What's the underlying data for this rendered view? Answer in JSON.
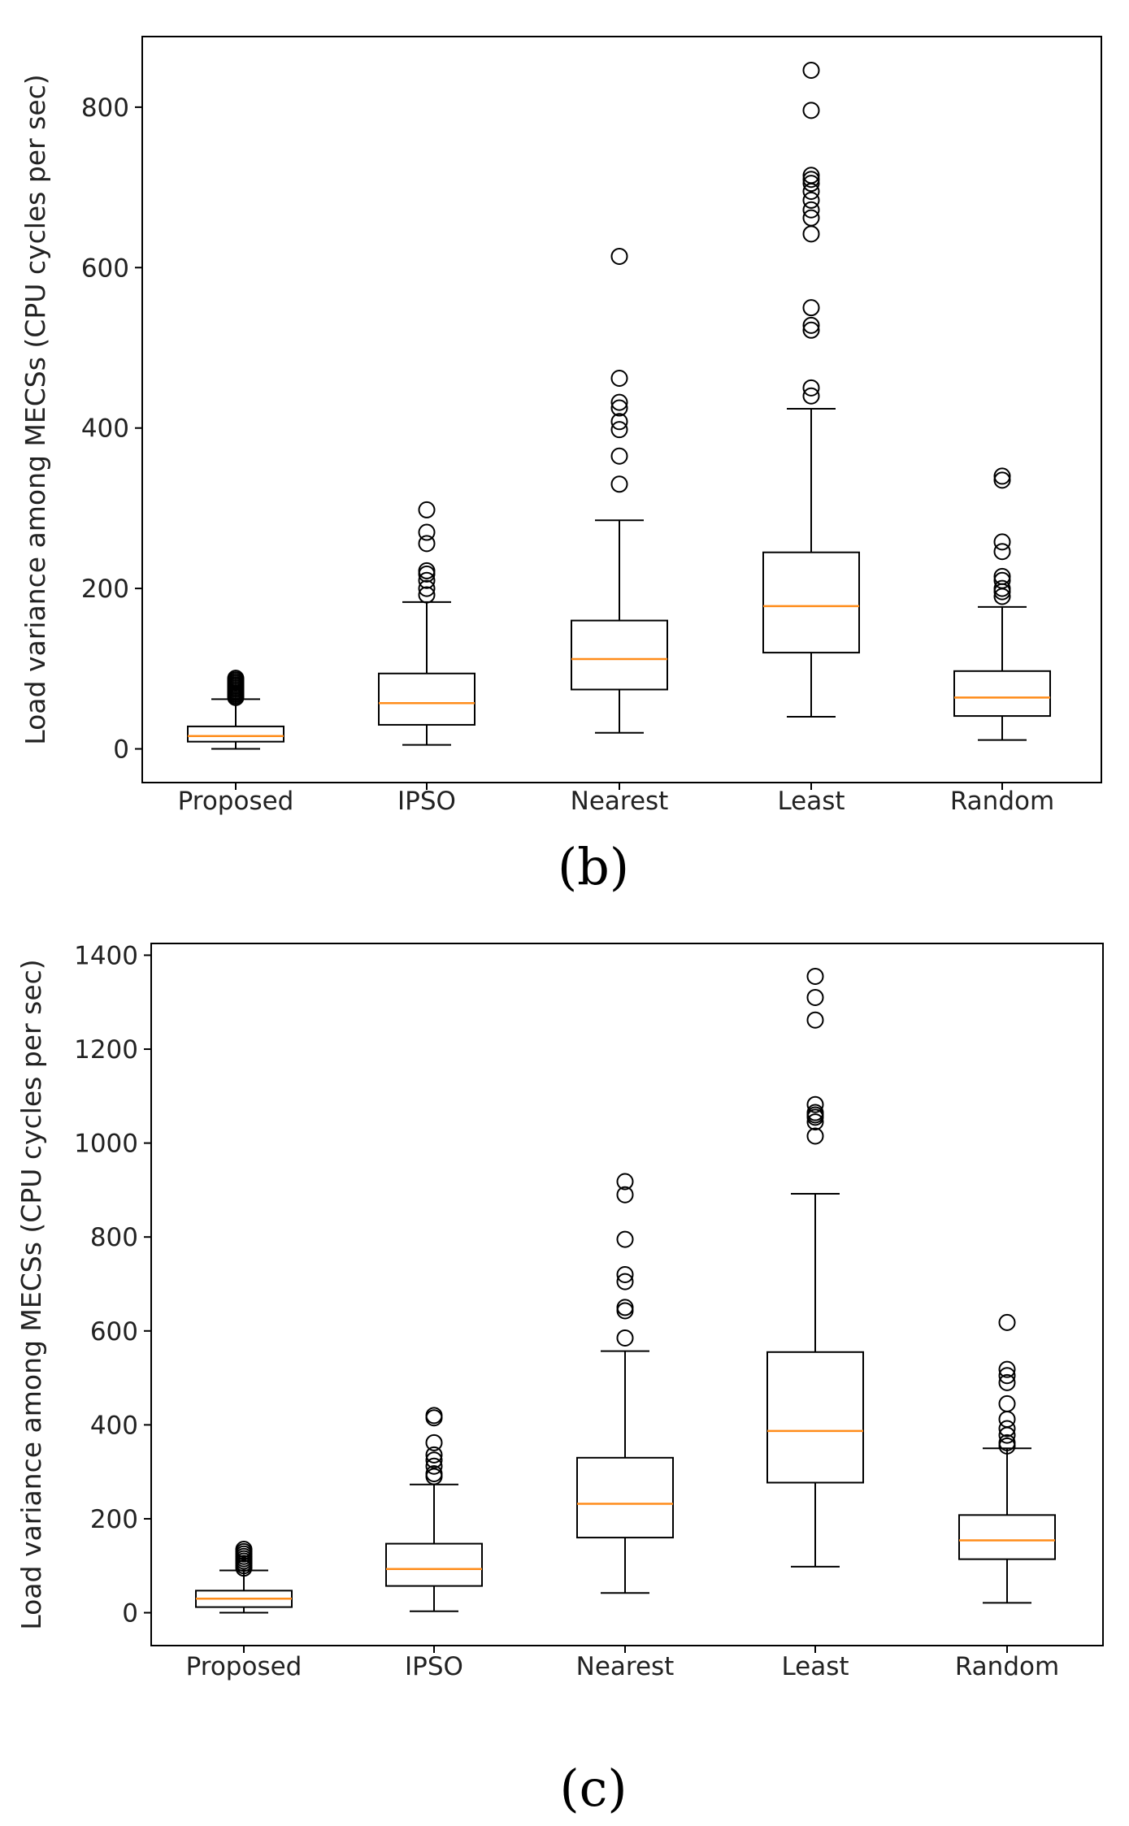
{
  "figure_labels": [
    "(b)",
    "(c)"
  ],
  "chart_data": [
    {
      "type": "boxplot",
      "panel": "(b)",
      "title": "",
      "xlabel": "",
      "ylabel": "Load variance among MECSs (CPU cycles per sec)",
      "ylim": [
        -42,
        888
      ],
      "yticks": [
        0,
        200,
        400,
        600,
        800
      ],
      "categories": [
        "Proposed",
        "IPSO",
        "Nearest",
        "Least",
        "Random"
      ],
      "series": [
        {
          "name": "Proposed",
          "whisker_low": 0,
          "q1": 9,
          "median": 16,
          "q3": 28,
          "whisker_high": 62,
          "outliers": [
            64,
            66,
            68,
            70,
            72,
            74,
            76,
            78,
            80,
            82,
            84,
            86,
            88
          ]
        },
        {
          "name": "IPSO",
          "whisker_low": 5,
          "q1": 30,
          "median": 57,
          "q3": 94,
          "whisker_high": 183,
          "outliers": [
            192,
            200,
            210,
            218,
            222,
            256,
            270,
            298
          ]
        },
        {
          "name": "Nearest",
          "whisker_low": 20,
          "q1": 74,
          "median": 112,
          "q3": 160,
          "whisker_high": 285,
          "outliers": [
            330,
            365,
            398,
            408,
            425,
            432,
            462,
            614
          ]
        },
        {
          "name": "Least",
          "whisker_low": 40,
          "q1": 120,
          "median": 178,
          "q3": 245,
          "whisker_high": 424,
          "outliers": [
            440,
            450,
            522,
            528,
            550,
            642,
            662,
            672,
            684,
            695,
            705,
            710,
            715,
            796,
            846
          ]
        },
        {
          "name": "Random",
          "whisker_low": 11,
          "q1": 41,
          "median": 64,
          "q3": 97,
          "whisker_high": 177,
          "outliers": [
            190,
            196,
            200,
            210,
            215,
            246,
            258,
            335,
            340
          ]
        }
      ]
    },
    {
      "type": "boxplot",
      "panel": "(c)",
      "title": "",
      "xlabel": "",
      "ylabel": "Load variance among MECSs (CPU cycles per sec)",
      "ylim": [
        -70,
        1425
      ],
      "yticks": [
        0,
        200,
        400,
        600,
        800,
        1000,
        1200,
        1400
      ],
      "categories": [
        "Proposed",
        "IPSO",
        "Nearest",
        "Least",
        "Random"
      ],
      "series": [
        {
          "name": "Proposed",
          "whisker_low": 0,
          "q1": 12,
          "median": 30,
          "q3": 47,
          "whisker_high": 90,
          "outliers": [
            95,
            100,
            105,
            110,
            115,
            120,
            125,
            130,
            135
          ]
        },
        {
          "name": "IPSO",
          "whisker_low": 3,
          "q1": 57,
          "median": 93,
          "q3": 147,
          "whisker_high": 273,
          "outliers": [
            290,
            296,
            312,
            325,
            336,
            362,
            415,
            420
          ]
        },
        {
          "name": "Nearest",
          "whisker_low": 42,
          "q1": 160,
          "median": 232,
          "q3": 330,
          "whisker_high": 557,
          "outliers": [
            585,
            643,
            650,
            705,
            720,
            795,
            890,
            918
          ]
        },
        {
          "name": "Least",
          "whisker_low": 98,
          "q1": 277,
          "median": 387,
          "q3": 555,
          "whisker_high": 892,
          "outliers": [
            1015,
            1045,
            1055,
            1060,
            1065,
            1082,
            1262,
            1310,
            1355
          ]
        },
        {
          "name": "Random",
          "whisker_low": 21,
          "q1": 114,
          "median": 154,
          "q3": 208,
          "whisker_high": 350,
          "outliers": [
            355,
            362,
            378,
            392,
            412,
            445,
            490,
            505,
            518,
            618
          ]
        }
      ]
    }
  ]
}
